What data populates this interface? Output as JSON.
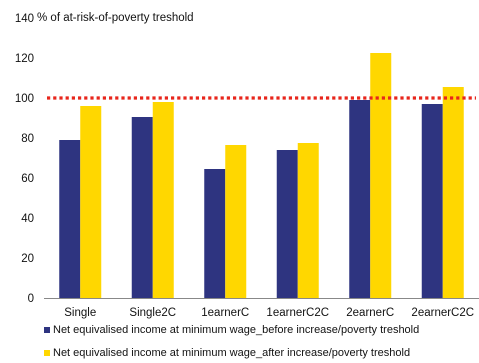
{
  "chart_data": {
    "type": "bar",
    "title": "",
    "ylabel": "% of at-risk-of-poverty treshold",
    "xlabel": "",
    "categories": [
      "Single",
      "Single2C",
      "1earnerC",
      "1earnerC2C",
      "2earnerC",
      "2earnerC2C"
    ],
    "series": [
      {
        "name": "Net equivalised income at minimum wage_before increase/poverty treshold",
        "color": "#2e3480",
        "values": [
          79,
          90.5,
          64.5,
          74,
          99,
          97
        ]
      },
      {
        "name": "Net equivalised income at minimum wage_after increase/poverty treshold",
        "color": "#ffd700",
        "values": [
          96,
          98,
          76.5,
          77.5,
          122.5,
          105.5
        ]
      }
    ],
    "ylim": [
      0,
      140
    ],
    "yticks": [
      0,
      20,
      40,
      60,
      80,
      100,
      120,
      140
    ],
    "reference_line": {
      "value": 100,
      "color": "#e8261c",
      "style": "dotted"
    },
    "grid": false,
    "legend_position": "bottom"
  }
}
